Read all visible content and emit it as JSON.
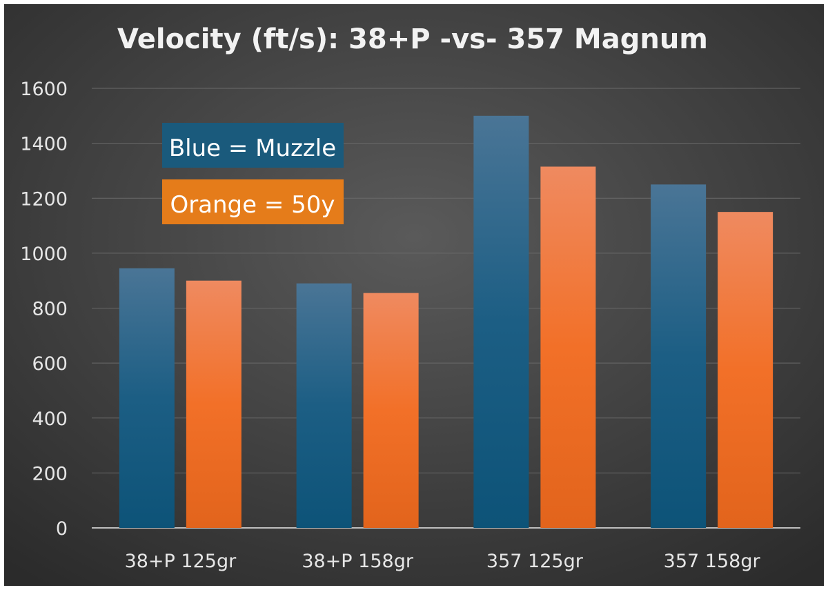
{
  "chart_data": {
    "type": "bar",
    "title": "Velocity (ft/s): 38+P -vs- 357 Magnum",
    "xlabel": "",
    "ylabel": "",
    "ylim": [
      0,
      1600
    ],
    "yticks": [
      0,
      200,
      400,
      600,
      800,
      1000,
      1200,
      1400,
      1600
    ],
    "grid": true,
    "categories": [
      "38+P 125gr",
      "38+P 158gr",
      "357 125gr",
      "357 158gr"
    ],
    "series": [
      {
        "name": "Muzzle",
        "color": "#1b5e82",
        "values": [
          945,
          890,
          1500,
          1250
        ]
      },
      {
        "name": "50y",
        "color": "#f07028",
        "values": [
          900,
          855,
          1315,
          1150
        ]
      }
    ],
    "legend": {
      "placement": "top-left",
      "entries": [
        "Blue = Muzzle",
        "Orange = 50y"
      ],
      "colors": [
        "#1a5a7c",
        "#e57c1a"
      ]
    }
  }
}
